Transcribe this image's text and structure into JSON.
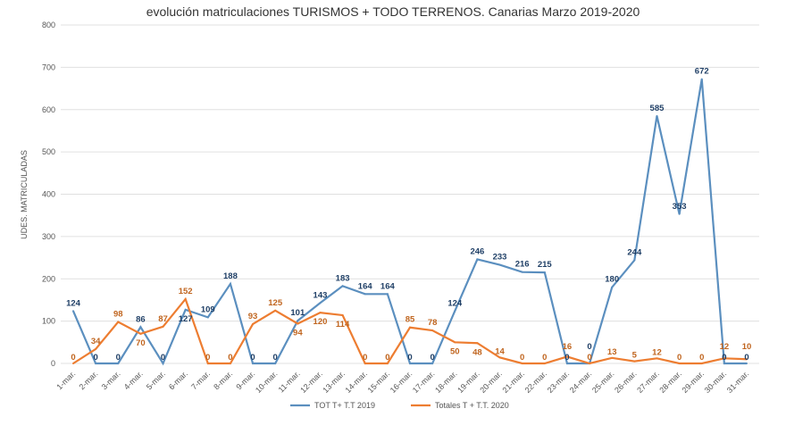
{
  "chart_data": {
    "type": "line",
    "title": "evolución matriculaciones TURISMOS + TODO TERRENOS. Canarias Marzo 2019-2020",
    "xlabel": "",
    "ylabel": "UDES. MATRICULADAS",
    "ylim": [
      0,
      800
    ],
    "yticks": [
      "0",
      "100",
      "200",
      "300",
      "400",
      "500",
      "600",
      "700",
      "800"
    ],
    "grid": true,
    "legend_position": "bottom",
    "categories": [
      "1-mar.",
      "2-mar.",
      "3-mar.",
      "4-mar.",
      "5-mar.",
      "6-mar.",
      "7-mar.",
      "8-mar.",
      "9-mar.",
      "10-mar.",
      "11-mar.",
      "12-mar.",
      "13-mar.",
      "14-mar.",
      "15-mar.",
      "16-mar.",
      "17-mar.",
      "18-mar.",
      "19-mar.",
      "20-mar.",
      "21-mar.",
      "22-mar.",
      "23-mar.",
      "24-mar.",
      "25-mar.",
      "26-mar.",
      "27-mar.",
      "28-mar.",
      "29-mar.",
      "30-mar.",
      "31-mar."
    ],
    "series": [
      {
        "name": "TOT T+ T.T 2019",
        "color": "#5b8fbf",
        "label_color": "#1f3f66",
        "values": [
          124,
          0,
          0,
          86,
          0,
          127,
          109,
          188,
          0,
          0,
          101,
          143,
          183,
          164,
          164,
          0,
          0,
          124,
          246,
          233,
          216,
          215,
          0,
          0,
          180,
          244,
          585,
          353,
          672,
          0,
          0
        ]
      },
      {
        "name": "Totales T + T.T. 2020",
        "color": "#ed7d31",
        "label_color": "#c0651f",
        "values": [
          0,
          34,
          98,
          70,
          87,
          152,
          0,
          0,
          93,
          125,
          94,
          120,
          114,
          0,
          0,
          85,
          78,
          50,
          48,
          14,
          0,
          0,
          16,
          0,
          13,
          5,
          12,
          0,
          0,
          12,
          10
        ]
      }
    ]
  }
}
